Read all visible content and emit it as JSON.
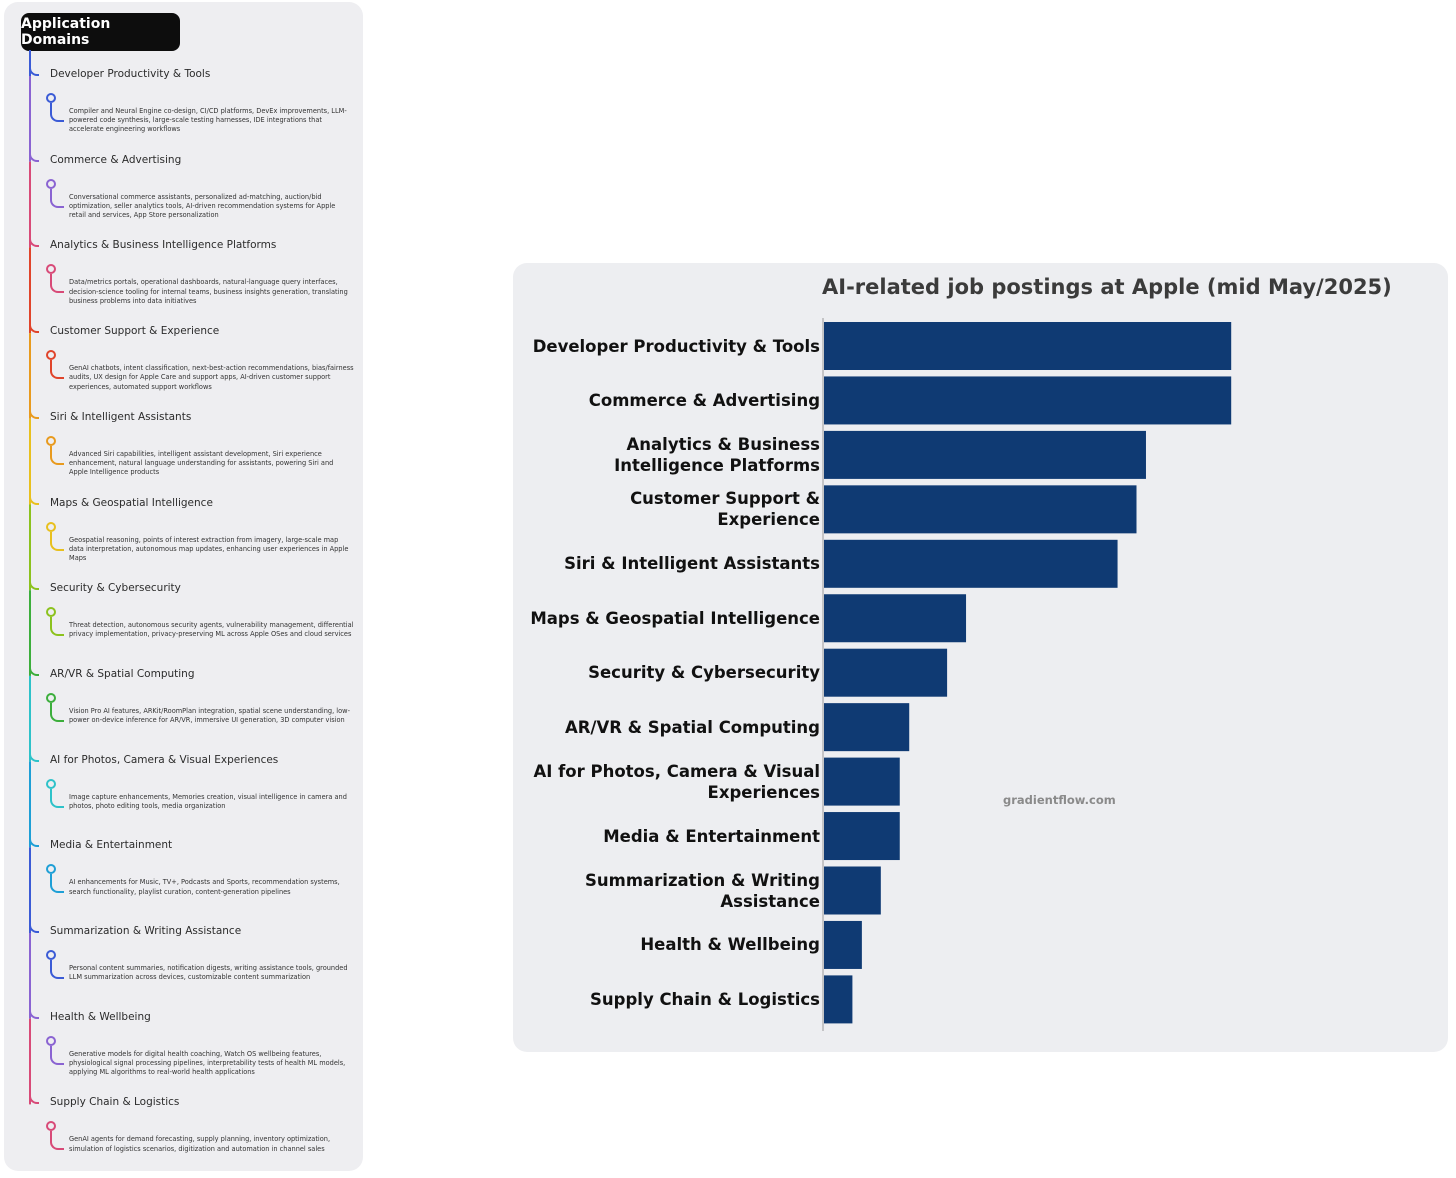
{
  "mindmap": {
    "root": "Application Domains",
    "branches": [
      {
        "title": "Developer Productivity & Tools",
        "color": "#3b5bd6",
        "desc": "Compiler and Neural Engine co-design, CI/CD platforms, DevEx improvements, LLM-powered code synthesis, large-scale testing harnesses, IDE integrations that accelerate engineering workflows"
      },
      {
        "title": "Commerce & Advertising",
        "color": "#8a63d2",
        "desc": "Conversational commerce assistants, personalized ad-matching, auction/bid optimization, seller analytics tools, AI-driven recommendation systems for Apple retail and services, App Store personalization"
      },
      {
        "title": "Analytics & Business Intelligence Platforms",
        "color": "#d84a78",
        "desc": "Data/metrics portals, operational dashboards, natural-language query interfaces, decision-science tooling for internal teams, business insights generation, translating business problems into data initiatives"
      },
      {
        "title": "Customer Support & Experience",
        "color": "#e0442b",
        "desc": "GenAI chatbots, intent classification, next-best-action recommendations, bias/fairness audits, UX design for Apple Care and support apps, AI-driven customer support experiences, automated support workflows"
      },
      {
        "title": "Siri & Intelligent Assistants",
        "color": "#e89a1e",
        "desc": "Advanced Siri capabilities, intelligent assistant development, Siri experience enhancement, natural language understanding for assistants, powering Siri and Apple Intelligence products"
      },
      {
        "title": "Maps & Geospatial Intelligence",
        "color": "#e8c01e",
        "desc": "Geospatial reasoning, points of interest extraction from imagery, large-scale map data interpretation, autonomous map updates, enhancing user experiences in Apple Maps"
      },
      {
        "title": "Security & Cybersecurity",
        "color": "#8cc21e",
        "desc": "Threat detection, autonomous security agents, vulnerability management, differential privacy implementation, privacy-preserving ML across Apple OSes and cloud services"
      },
      {
        "title": "AR/VR & Spatial Computing",
        "color": "#3cae3c",
        "desc": "Vision Pro AI features, ARKit/RoomPlan integration, spatial scene understanding, low-power on-device inference for AR/VR, immersive UI generation, 3D computer vision"
      },
      {
        "title": "AI for Photos, Camera & Visual Experiences",
        "color": "#2ec2c9",
        "desc": "Image capture enhancements, Memories creation, visual intelligence in camera and photos, photo editing tools, media organization"
      },
      {
        "title": "Media & Entertainment",
        "color": "#1e9fd6",
        "desc": "AI enhancements for Music, TV+, Podcasts and Sports, recommendation systems, search functionality, playlist curation, content-generation pipelines"
      },
      {
        "title": "Summarization & Writing Assistance",
        "color": "#3b5bd6",
        "desc": "Personal content summaries, notification digests, writing assistance tools, grounded LLM summarization across devices, customizable content summarization"
      },
      {
        "title": "Health & Wellbeing",
        "color": "#8a63d2",
        "desc": "Generative models for digital health coaching, Watch OS wellbeing features, physiological signal processing pipelines, interpretability tests of health ML models, applying ML algorithms to real-world health applications"
      },
      {
        "title": "Supply Chain & Logistics",
        "color": "#d84a78",
        "desc": "GenAI agents for demand forecasting, supply planning, inventory optimization, simulation of logistics scenarios, digitization and automation in channel sales"
      }
    ]
  },
  "chart_data": {
    "type": "bar",
    "orientation": "horizontal",
    "title": "AI-related job postings at Apple (mid May/2025)",
    "categories": [
      "Developer Productivity & Tools",
      "Commerce & Advertising",
      "Analytics & Business Intelligence Platforms",
      "Customer Support & Experience",
      "Siri & Intelligent Assistants",
      "Maps & Geospatial Intelligence",
      "Security & Cybersecurity",
      "AR/VR & Spatial Computing",
      "AI for Photos, Camera & Visual Experiences",
      "Media & Entertainment",
      "Summarization & Writing Assistance",
      "Health & Wellbeing",
      "Supply Chain & Logistics"
    ],
    "values": [
      43,
      43,
      34,
      33,
      31,
      15,
      13,
      9,
      8,
      8,
      6,
      4,
      3
    ],
    "xlim": [
      0,
      66
    ],
    "bar_color": "#0f3a73",
    "grid": false,
    "xlabel": "",
    "ylabel": ""
  },
  "watermark": "gradientflow.com"
}
